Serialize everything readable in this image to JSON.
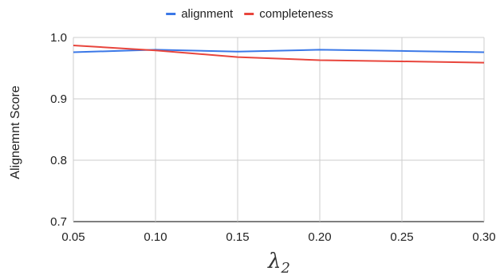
{
  "chart_data": {
    "type": "line",
    "x": [
      0.05,
      0.1,
      0.15,
      0.2,
      0.25,
      0.3
    ],
    "x_tick_labels": [
      "0.05",
      "0.10",
      "0.15",
      "0.20",
      "0.25",
      "0.30"
    ],
    "series": [
      {
        "name": "alignment",
        "color": "#3b78e7",
        "values": [
          0.976,
          0.98,
          0.977,
          0.98,
          0.978,
          0.976
        ]
      },
      {
        "name": "completeness",
        "color": "#e8453c",
        "values": [
          0.987,
          0.979,
          0.968,
          0.963,
          0.961,
          0.959
        ]
      }
    ],
    "title": "",
    "xlabel": "λ2",
    "xlabel_main": "λ",
    "xlabel_sub": "2",
    "ylabel": "Alignemnt Score",
    "xlim": [
      0.05,
      0.3
    ],
    "ylim": [
      0.7,
      1.0
    ],
    "y_ticks": [
      0.7,
      0.8,
      0.9,
      1.0
    ],
    "y_tick_labels": [
      "0.7",
      "0.8",
      "0.9",
      "1.0"
    ],
    "grid": true,
    "legend_position": "top-center"
  }
}
